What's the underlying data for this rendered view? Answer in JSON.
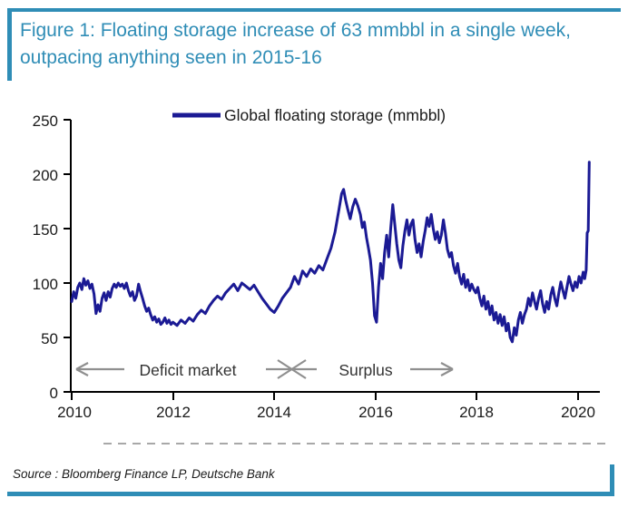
{
  "figure": {
    "title": "Figure 1: Floating storage increase of 63 mmbbl in a single week, outpacing anything seen in 2015-16",
    "source": "Source : Bloomberg Finance LP, Deutsche Bank",
    "accent_color": "#2f8db6"
  },
  "chart_data": {
    "type": "line",
    "title": "Global floating storage, mmbbl, 2010-2020",
    "xlabel": "",
    "ylabel": "",
    "x_ticks": [
      "2010",
      "2012",
      "2014",
      "2016",
      "2018",
      "2020"
    ],
    "y_ticks": [
      "0",
      "50",
      "100",
      "150",
      "200",
      "250"
    ],
    "xlim": [
      2010,
      2020.45
    ],
    "ylim": [
      0,
      250
    ],
    "grid": false,
    "legend_position": "top-center",
    "legend": [
      {
        "label": "Global floating storage (mmbbl)",
        "color": "#1b1a94"
      }
    ],
    "annotations": [
      {
        "text": "Deficit market",
        "arrow": "left",
        "span_years": [
          2010,
          2014.3
        ]
      },
      {
        "text": "Surplus",
        "arrow": "right",
        "span_years": [
          2014.3,
          2020.4
        ]
      }
    ],
    "series": [
      {
        "name": "Global floating storage (mmbbl)",
        "color": "#1b1a94",
        "points": [
          [
            2010.0,
            83
          ],
          [
            2010.04,
            92
          ],
          [
            2010.08,
            86
          ],
          [
            2010.12,
            96
          ],
          [
            2010.16,
            100
          ],
          [
            2010.2,
            94
          ],
          [
            2010.24,
            104
          ],
          [
            2010.28,
            98
          ],
          [
            2010.32,
            102
          ],
          [
            2010.36,
            95
          ],
          [
            2010.4,
            99
          ],
          [
            2010.44,
            90
          ],
          [
            2010.48,
            72
          ],
          [
            2010.52,
            80
          ],
          [
            2010.56,
            74
          ],
          [
            2010.6,
            86
          ],
          [
            2010.64,
            91
          ],
          [
            2010.68,
            84
          ],
          [
            2010.72,
            92
          ],
          [
            2010.76,
            87
          ],
          [
            2010.8,
            95
          ],
          [
            2010.84,
            99
          ],
          [
            2010.88,
            96
          ],
          [
            2010.92,
            100
          ],
          [
            2010.96,
            97
          ],
          [
            2011.0,
            99
          ],
          [
            2011.04,
            95
          ],
          [
            2011.08,
            100
          ],
          [
            2011.12,
            93
          ],
          [
            2011.16,
            88
          ],
          [
            2011.2,
            92
          ],
          [
            2011.24,
            84
          ],
          [
            2011.28,
            88
          ],
          [
            2011.32,
            99
          ],
          [
            2011.36,
            92
          ],
          [
            2011.4,
            86
          ],
          [
            2011.44,
            79
          ],
          [
            2011.48,
            74
          ],
          [
            2011.52,
            77
          ],
          [
            2011.56,
            71
          ],
          [
            2011.6,
            66
          ],
          [
            2011.64,
            69
          ],
          [
            2011.68,
            64
          ],
          [
            2011.72,
            67
          ],
          [
            2011.76,
            62
          ],
          [
            2011.8,
            64
          ],
          [
            2011.84,
            68
          ],
          [
            2011.88,
            63
          ],
          [
            2011.92,
            66
          ],
          [
            2011.96,
            62
          ],
          [
            2012.0,
            64
          ],
          [
            2012.08,
            61
          ],
          [
            2012.16,
            66
          ],
          [
            2012.24,
            63
          ],
          [
            2012.32,
            68
          ],
          [
            2012.4,
            65
          ],
          [
            2012.48,
            71
          ],
          [
            2012.56,
            75
          ],
          [
            2012.64,
            72
          ],
          [
            2012.72,
            79
          ],
          [
            2012.8,
            84
          ],
          [
            2012.88,
            88
          ],
          [
            2012.96,
            85
          ],
          [
            2013.04,
            91
          ],
          [
            2013.12,
            95
          ],
          [
            2013.2,
            99
          ],
          [
            2013.28,
            93
          ],
          [
            2013.36,
            100
          ],
          [
            2013.44,
            97
          ],
          [
            2013.52,
            94
          ],
          [
            2013.6,
            98
          ],
          [
            2013.68,
            92
          ],
          [
            2013.76,
            86
          ],
          [
            2013.84,
            81
          ],
          [
            2013.92,
            76
          ],
          [
            2014.0,
            73
          ],
          [
            2014.08,
            79
          ],
          [
            2014.16,
            86
          ],
          [
            2014.24,
            91
          ],
          [
            2014.32,
            96
          ],
          [
            2014.4,
            106
          ],
          [
            2014.48,
            99
          ],
          [
            2014.56,
            111
          ],
          [
            2014.64,
            106
          ],
          [
            2014.72,
            113
          ],
          [
            2014.8,
            109
          ],
          [
            2014.88,
            116
          ],
          [
            2014.96,
            112
          ],
          [
            2015.04,
            122
          ],
          [
            2015.12,
            132
          ],
          [
            2015.2,
            147
          ],
          [
            2015.28,
            168
          ],
          [
            2015.33,
            182
          ],
          [
            2015.37,
            186
          ],
          [
            2015.41,
            176
          ],
          [
            2015.45,
            168
          ],
          [
            2015.5,
            159
          ],
          [
            2015.55,
            170
          ],
          [
            2015.6,
            177
          ],
          [
            2015.65,
            171
          ],
          [
            2015.7,
            163
          ],
          [
            2015.74,
            151
          ],
          [
            2015.78,
            156
          ],
          [
            2015.82,
            142
          ],
          [
            2015.86,
            132
          ],
          [
            2015.9,
            121
          ],
          [
            2015.94,
            100
          ],
          [
            2015.98,
            70
          ],
          [
            2016.02,
            64
          ],
          [
            2016.06,
            96
          ],
          [
            2016.1,
            118
          ],
          [
            2016.14,
            104
          ],
          [
            2016.18,
            128
          ],
          [
            2016.22,
            144
          ],
          [
            2016.26,
            124
          ],
          [
            2016.3,
            150
          ],
          [
            2016.34,
            172
          ],
          [
            2016.38,
            154
          ],
          [
            2016.42,
            136
          ],
          [
            2016.46,
            121
          ],
          [
            2016.5,
            114
          ],
          [
            2016.54,
            134
          ],
          [
            2016.58,
            148
          ],
          [
            2016.62,
            158
          ],
          [
            2016.66,
            144
          ],
          [
            2016.7,
            154
          ],
          [
            2016.74,
            158
          ],
          [
            2016.78,
            140
          ],
          [
            2016.82,
            128
          ],
          [
            2016.86,
            136
          ],
          [
            2016.9,
            124
          ],
          [
            2016.94,
            138
          ],
          [
            2016.98,
            148
          ],
          [
            2017.02,
            160
          ],
          [
            2017.06,
            152
          ],
          [
            2017.1,
            163
          ],
          [
            2017.14,
            150
          ],
          [
            2017.18,
            140
          ],
          [
            2017.22,
            147
          ],
          [
            2017.26,
            137
          ],
          [
            2017.3,
            144
          ],
          [
            2017.34,
            158
          ],
          [
            2017.38,
            146
          ],
          [
            2017.42,
            131
          ],
          [
            2017.46,
            124
          ],
          [
            2017.5,
            128
          ],
          [
            2017.54,
            116
          ],
          [
            2017.58,
            109
          ],
          [
            2017.62,
            118
          ],
          [
            2017.66,
            106
          ],
          [
            2017.7,
            99
          ],
          [
            2017.74,
            108
          ],
          [
            2017.78,
            96
          ],
          [
            2017.82,
            103
          ],
          [
            2017.86,
            93
          ],
          [
            2017.9,
            99
          ],
          [
            2017.94,
            94
          ],
          [
            2017.98,
            91
          ],
          [
            2018.02,
            96
          ],
          [
            2018.06,
            86
          ],
          [
            2018.1,
            79
          ],
          [
            2018.14,
            88
          ],
          [
            2018.18,
            76
          ],
          [
            2018.22,
            83
          ],
          [
            2018.26,
            71
          ],
          [
            2018.3,
            79
          ],
          [
            2018.34,
            66
          ],
          [
            2018.38,
            73
          ],
          [
            2018.42,
            63
          ],
          [
            2018.46,
            71
          ],
          [
            2018.5,
            61
          ],
          [
            2018.54,
            69
          ],
          [
            2018.58,
            56
          ],
          [
            2018.62,
            63
          ],
          [
            2018.66,
            50
          ],
          [
            2018.7,
            46
          ],
          [
            2018.74,
            59
          ],
          [
            2018.78,
            52
          ],
          [
            2018.82,
            66
          ],
          [
            2018.86,
            73
          ],
          [
            2018.9,
            63
          ],
          [
            2018.94,
            71
          ],
          [
            2018.98,
            76
          ],
          [
            2019.02,
            86
          ],
          [
            2019.06,
            79
          ],
          [
            2019.1,
            91
          ],
          [
            2019.14,
            83
          ],
          [
            2019.18,
            76
          ],
          [
            2019.22,
            86
          ],
          [
            2019.26,
            93
          ],
          [
            2019.3,
            81
          ],
          [
            2019.34,
            73
          ],
          [
            2019.38,
            83
          ],
          [
            2019.42,
            76
          ],
          [
            2019.46,
            89
          ],
          [
            2019.5,
            96
          ],
          [
            2019.54,
            86
          ],
          [
            2019.58,
            79
          ],
          [
            2019.62,
            91
          ],
          [
            2019.66,
            101
          ],
          [
            2019.7,
            93
          ],
          [
            2019.74,
            86
          ],
          [
            2019.78,
            96
          ],
          [
            2019.82,
            106
          ],
          [
            2019.86,
            99
          ],
          [
            2019.9,
            93
          ],
          [
            2019.94,
            101
          ],
          [
            2019.98,
            96
          ],
          [
            2020.02,
            106
          ],
          [
            2020.06,
            100
          ],
          [
            2020.1,
            110
          ],
          [
            2020.13,
            104
          ],
          [
            2020.16,
            112
          ],
          [
            2020.18,
            146
          ],
          [
            2020.2,
            148
          ],
          [
            2020.22,
            211
          ]
        ]
      }
    ]
  }
}
